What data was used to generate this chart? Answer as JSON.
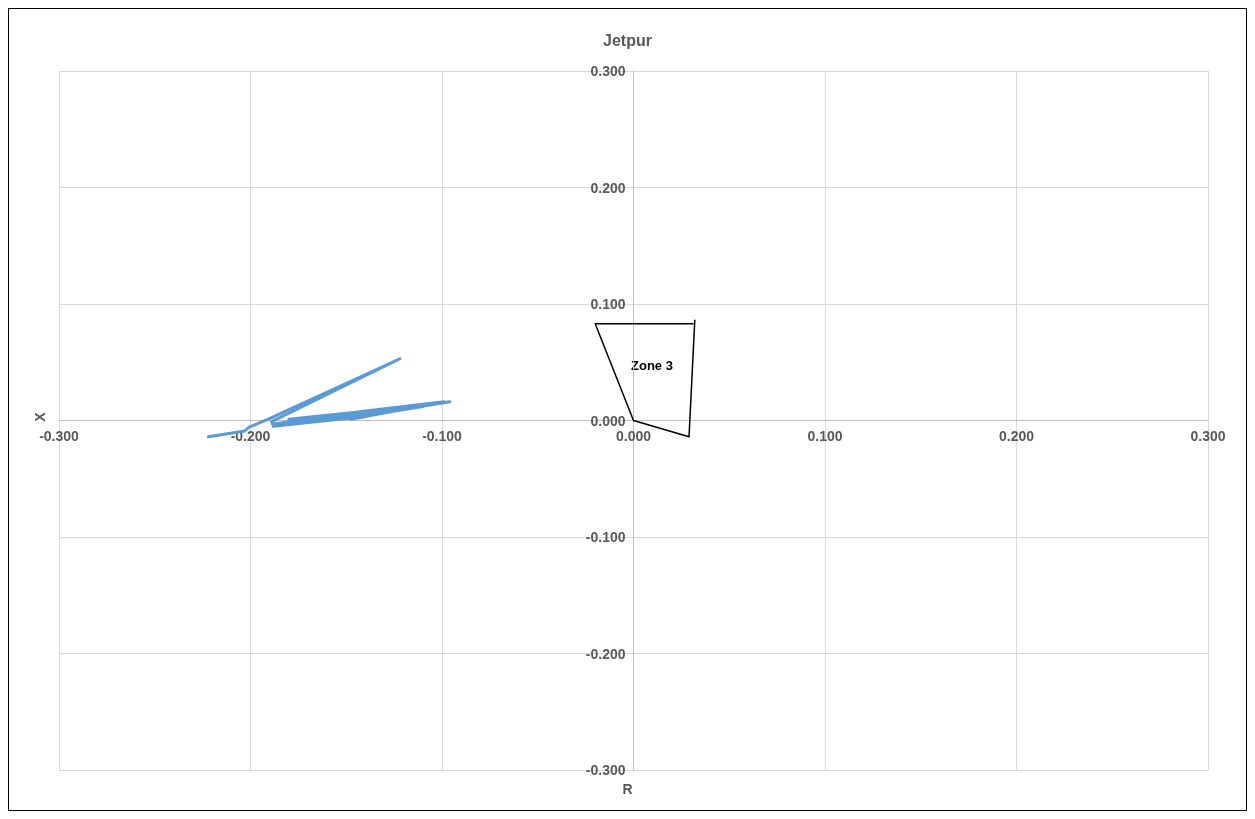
{
  "chart_data": {
    "type": "line",
    "title": "Jetpur",
    "xlabel": "R",
    "ylabel": "X",
    "xlim": [
      -0.3,
      0.3
    ],
    "ylim": [
      -0.3,
      0.3
    ],
    "xticks": [
      {
        "value": -0.3,
        "label": "-0.300"
      },
      {
        "value": -0.2,
        "label": "-0.200"
      },
      {
        "value": -0.1,
        "label": "-0.100"
      },
      {
        "value": 0,
        "label": "0.000"
      },
      {
        "value": 0.1,
        "label": "0.100"
      },
      {
        "value": 0.2,
        "label": "0.200"
      },
      {
        "value": 0.3,
        "label": "0.300"
      }
    ],
    "yticks": [
      {
        "value": -0.3,
        "label": "-0.300"
      },
      {
        "value": -0.2,
        "label": "-0.200"
      },
      {
        "value": -0.1,
        "label": "-0.100"
      },
      {
        "value": 0,
        "label": "0.000"
      },
      {
        "value": 0.1,
        "label": "0.100"
      },
      {
        "value": 0.2,
        "label": "0.200"
      },
      {
        "value": 0.3,
        "label": "0.300"
      }
    ],
    "grid": true,
    "marker": "none",
    "line_style": "solid",
    "series": [
      {
        "color": "#5b9bd5",
        "x": [
          -0.222,
          -0.203,
          -0.201,
          -0.191,
          -0.122,
          -0.189,
          -0.188,
          -0.149,
          -0.096,
          -0.105,
          -0.18,
          -0.144,
          -0.102,
          -0.148,
          -0.141,
          -0.127,
          -0.099,
          -0.141,
          -0.188,
          -0.144,
          -0.11
        ],
        "values": [
          -0.014,
          -0.009,
          -0.006,
          0.001,
          0.053,
          -0.001,
          -0.005,
          0.002,
          0.016,
          0.014,
          0.001,
          0.005,
          0.015,
          0.001,
          0.003,
          0.009,
          0.016,
          0.008,
          -0.003,
          0.003,
          0.012
        ]
      },
      {
        "color": "#000000",
        "x": [
          0.031,
          -0.02,
          0,
          0.029,
          0.032
        ],
        "values": [
          0.083,
          0.083,
          0,
          -0.014,
          0.086
        ]
      }
    ],
    "annotations": [
      "Zone 3"
    ]
  }
}
